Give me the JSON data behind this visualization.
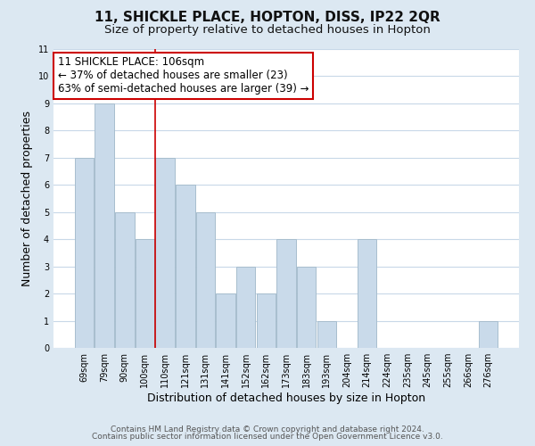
{
  "title_line1": "11, SHICKLE PLACE, HOPTON, DISS, IP22 2QR",
  "title_line2": "Size of property relative to detached houses in Hopton",
  "xlabel": "Distribution of detached houses by size in Hopton",
  "ylabel": "Number of detached properties",
  "bar_labels": [
    "69sqm",
    "79sqm",
    "90sqm",
    "100sqm",
    "110sqm",
    "121sqm",
    "131sqm",
    "141sqm",
    "152sqm",
    "162sqm",
    "173sqm",
    "183sqm",
    "193sqm",
    "204sqm",
    "214sqm",
    "224sqm",
    "235sqm",
    "245sqm",
    "255sqm",
    "266sqm",
    "276sqm"
  ],
  "bar_values": [
    7,
    9,
    5,
    4,
    7,
    6,
    5,
    2,
    3,
    2,
    4,
    3,
    1,
    0,
    4,
    0,
    0,
    0,
    0,
    0,
    1
  ],
  "bar_color": "#c9daea",
  "bar_edge_color": "#a8bece",
  "ylim": [
    0,
    11
  ],
  "yticks": [
    0,
    1,
    2,
    3,
    4,
    5,
    6,
    7,
    8,
    9,
    10,
    11
  ],
  "annotation_title": "11 SHICKLE PLACE: 106sqm",
  "annotation_line2": "← 37% of detached houses are smaller (23)",
  "annotation_line3": "63% of semi-detached houses are larger (39) →",
  "annotation_box_color": "#ffffff",
  "annotation_box_edge": "#cc0000",
  "property_line_color": "#cc0000",
  "property_line_x": 3.5,
  "footer_line1": "Contains HM Land Registry data © Crown copyright and database right 2024.",
  "footer_line2": "Contains public sector information licensed under the Open Government Licence v3.0.",
  "grid_color": "#c8d8e8",
  "plot_bg_color": "#ffffff",
  "fig_bg_color": "#dce8f2",
  "title_fontsize": 11,
  "subtitle_fontsize": 9.5,
  "axis_label_fontsize": 9,
  "tick_fontsize": 7,
  "annotation_fontsize": 8.5,
  "footer_fontsize": 6.5
}
